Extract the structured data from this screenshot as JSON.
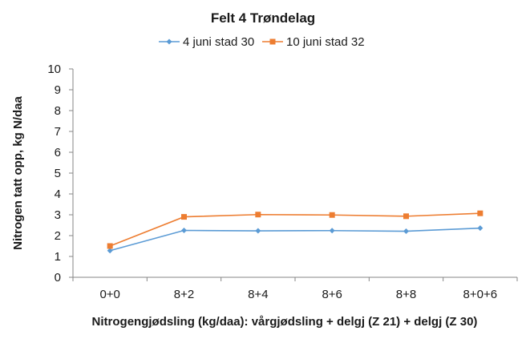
{
  "chart_data": {
    "type": "line",
    "title": "Felt 4 Trøndelag",
    "xlabel": "Nitrogengjødsling (kg/daa): vårgjødsling + delgj (Z 21) + delgj (Z 30)",
    "ylabel": "Nitrogen tatt opp, kg N/daa",
    "categories": [
      "0+0",
      "8+2",
      "8+4",
      "8+6",
      "8+8",
      "8+0+6"
    ],
    "ylim": [
      0,
      10
    ],
    "yticks": [
      "0",
      "1",
      "2",
      "3",
      "4",
      "5",
      "6",
      "7",
      "8",
      "9",
      "10"
    ],
    "grid": false,
    "legend_position": "top",
    "series": [
      {
        "name": "4 juni stad 30",
        "color": "#5b9bd5",
        "marker": "diamond",
        "values": [
          1.28,
          2.25,
          2.23,
          2.24,
          2.21,
          2.36
        ]
      },
      {
        "name": "10 juni stad 32",
        "color": "#ed7d31",
        "marker": "square",
        "values": [
          1.5,
          2.9,
          3.01,
          2.99,
          2.93,
          3.07
        ]
      }
    ]
  }
}
